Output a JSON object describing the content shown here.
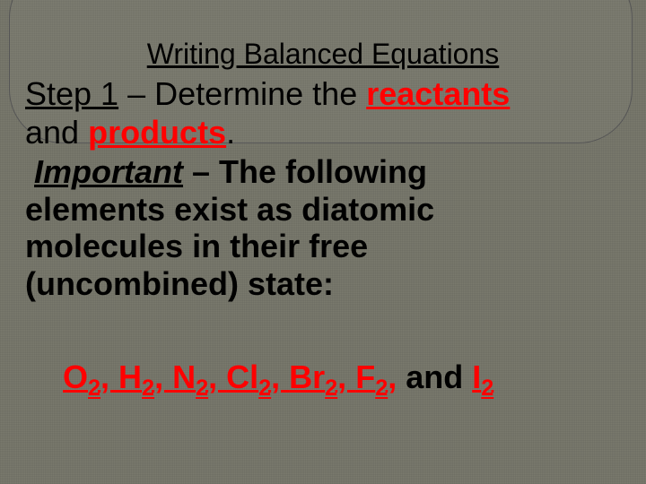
{
  "title": "Writing Balanced Equations",
  "step": {
    "label": "Step 1",
    "dash": " – Determine the ",
    "reactants": "reactants",
    "and": "and ",
    "products": "products",
    "period": "."
  },
  "important": {
    "label": "Important",
    "dash": " – ",
    "text1": "The following",
    "text2": "elements exist as diatomic",
    "text3": "molecules in their free",
    "text4": "(uncombined) state:"
  },
  "molecules": {
    "o": "O",
    "h": "H",
    "n": "N",
    "cl": "Cl",
    "br": "Br",
    "f": "F",
    "i": "I",
    "sub": "2",
    "sep": ", ",
    "and": " and "
  },
  "colors": {
    "background": "#7a7a6e",
    "highlight": "#ff0000",
    "text": "#000000",
    "bubble_border": "#555555"
  },
  "fonts": {
    "title_size_pt": 32,
    "body_size_pt": 36,
    "family": "Arial"
  }
}
